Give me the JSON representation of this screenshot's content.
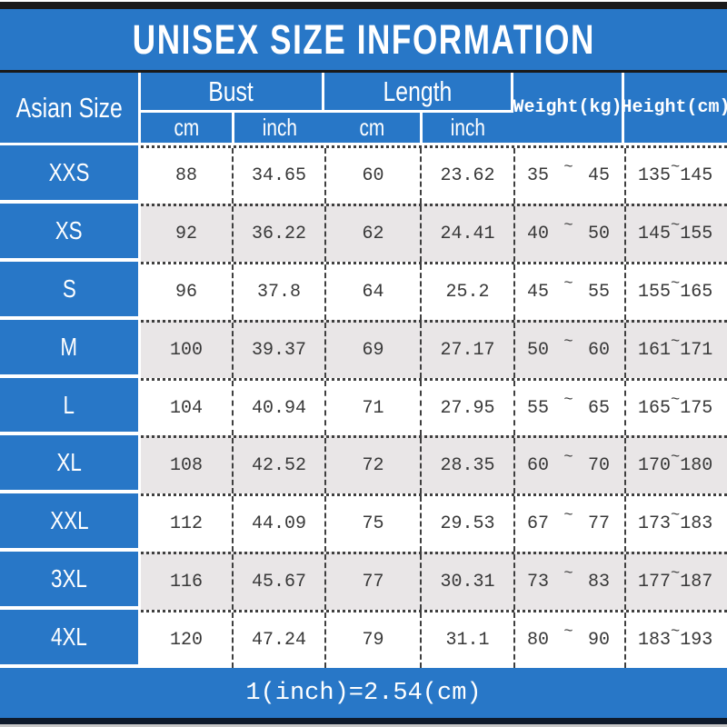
{
  "title": "UNISEX SIZE INFORMATION",
  "table": {
    "size_column_header": "Asian Size",
    "bust_header": "Bust",
    "length_header": "Length",
    "weight_header": "Weight(kg)",
    "height_header": "Height(cm)",
    "unit_cm": "cm",
    "unit_inch": "inch",
    "tilde": "~",
    "rows": [
      {
        "size": "XXS",
        "bust_cm": "88",
        "bust_inch": "34.65",
        "length_cm": "60",
        "length_inch": "23.62",
        "weight_min": "35",
        "weight_max": "45",
        "height_min": "135",
        "height_max": "145"
      },
      {
        "size": "XS",
        "bust_cm": "92",
        "bust_inch": "36.22",
        "length_cm": "62",
        "length_inch": "24.41",
        "weight_min": "40",
        "weight_max": "50",
        "height_min": "145",
        "height_max": "155"
      },
      {
        "size": "S",
        "bust_cm": "96",
        "bust_inch": "37.8",
        "length_cm": "64",
        "length_inch": "25.2",
        "weight_min": "45",
        "weight_max": "55",
        "height_min": "155",
        "height_max": "165"
      },
      {
        "size": "M",
        "bust_cm": "100",
        "bust_inch": "39.37",
        "length_cm": "69",
        "length_inch": "27.17",
        "weight_min": "50",
        "weight_max": "60",
        "height_min": "161",
        "height_max": "171"
      },
      {
        "size": "L",
        "bust_cm": "104",
        "bust_inch": "40.94",
        "length_cm": "71",
        "length_inch": "27.95",
        "weight_min": "55",
        "weight_max": "65",
        "height_min": "165",
        "height_max": "175"
      },
      {
        "size": "XL",
        "bust_cm": "108",
        "bust_inch": "42.52",
        "length_cm": "72",
        "length_inch": "28.35",
        "weight_min": "60",
        "weight_max": "70",
        "height_min": "170",
        "height_max": "180"
      },
      {
        "size": "XXL",
        "bust_cm": "112",
        "bust_inch": "44.09",
        "length_cm": "75",
        "length_inch": "29.53",
        "weight_min": "67",
        "weight_max": "77",
        "height_min": "173",
        "height_max": "183"
      },
      {
        "size": "3XL",
        "bust_cm": "116",
        "bust_inch": "45.67",
        "length_cm": "77",
        "length_inch": "30.31",
        "weight_min": "73",
        "weight_max": "83",
        "height_min": "177",
        "height_max": "187"
      },
      {
        "size": "4XL",
        "bust_cm": "120",
        "bust_inch": "47.24",
        "length_cm": "79",
        "length_inch": "31.1",
        "weight_min": "80",
        "weight_max": "90",
        "height_min": "183",
        "height_max": "193"
      }
    ]
  },
  "footer_note": "1(inch)=2.54(cm)",
  "colors": {
    "accent_blue": "#2877c7",
    "row_alt_gray": "#e9e6e7",
    "bar_black": "#1a1a1a",
    "bar_navy": "#0e1a2b"
  },
  "chart_data": {
    "type": "table",
    "title": "UNISEX SIZE INFORMATION",
    "columns": [
      "Asian Size",
      "Bust cm",
      "Bust inch",
      "Length cm",
      "Length inch",
      "Weight(kg)",
      "Height(cm)"
    ],
    "rows": [
      [
        "XXS",
        88,
        34.65,
        60,
        23.62,
        "35~45",
        "135~145"
      ],
      [
        "XS",
        92,
        36.22,
        62,
        24.41,
        "40~50",
        "145~155"
      ],
      [
        "S",
        96,
        37.8,
        64,
        25.2,
        "45~55",
        "155~165"
      ],
      [
        "M",
        100,
        39.37,
        69,
        27.17,
        "50~60",
        "161~171"
      ],
      [
        "L",
        104,
        40.94,
        71,
        27.95,
        "55~65",
        "165~175"
      ],
      [
        "XL",
        108,
        42.52,
        72,
        28.35,
        "60~70",
        "170~180"
      ],
      [
        "XXL",
        112,
        44.09,
        75,
        29.53,
        "67~77",
        "173~183"
      ],
      [
        "3XL",
        116,
        45.67,
        77,
        30.31,
        "73~83",
        "177~187"
      ],
      [
        "4XL",
        120,
        47.24,
        79,
        31.1,
        "80~90",
        "183~193"
      ]
    ],
    "footnote": "1(inch)=2.54(cm)"
  }
}
